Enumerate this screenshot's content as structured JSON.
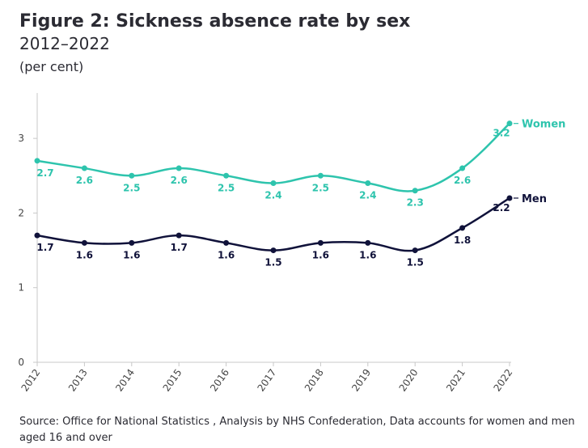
{
  "title": "Figure 2: Sickness absence rate by sex",
  "subtitle": "2012–2022",
  "unit_note": "(per cent)",
  "source": "Source: Office for National Statistics , Analysis by NHS Confederation, Data accounts for women and men aged 16 and over",
  "colors": {
    "women": "#2ec4ad",
    "men": "#10123a",
    "axis": "#c8c8c8"
  },
  "chart_data": {
    "type": "line",
    "categories": [
      "2012",
      "2013",
      "2014",
      "2015",
      "2016",
      "2017",
      "2018",
      "2019",
      "2020",
      "2021",
      "2022"
    ],
    "y_ticks": [
      "0",
      "1",
      "2",
      "3"
    ],
    "ylim": [
      0,
      3.5
    ],
    "grid": false,
    "series": [
      {
        "key": "women",
        "name": "Women",
        "values": [
          2.7,
          2.6,
          2.5,
          2.6,
          2.5,
          2.4,
          2.5,
          2.4,
          2.3,
          2.6,
          3.2
        ],
        "labels": [
          "2.7",
          "2.6",
          "2.5",
          "2.6",
          "2.5",
          "2.4",
          "2.5",
          "2.4",
          "2.3",
          "2.6",
          "3.2"
        ]
      },
      {
        "key": "men",
        "name": "Men",
        "values": [
          1.7,
          1.6,
          1.6,
          1.7,
          1.6,
          1.5,
          1.6,
          1.6,
          1.5,
          1.8,
          2.2
        ],
        "labels": [
          "1.7",
          "1.6",
          "1.6",
          "1.7",
          "1.6",
          "1.5",
          "1.6",
          "1.6",
          "1.5",
          "1.8",
          "2.2"
        ]
      }
    ]
  }
}
